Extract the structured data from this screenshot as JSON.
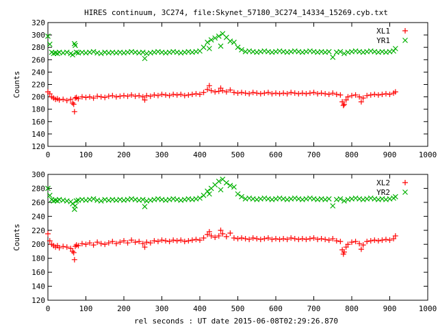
{
  "chart_data": {
    "type": "scatter",
    "title": "HIRES continuum, 3C274, file:Skynet_57180_3C274_14334_15269.cyb.txt",
    "xlabel": "rel seconds : UT date 2015-06-08T02:29:26.870",
    "colors": {
      "XL": "#ff0000",
      "YR": "#00b000"
    },
    "panels": [
      {
        "ylabel": "Counts",
        "xlim": [
          0,
          1000
        ],
        "ylim": [
          120,
          320
        ],
        "xticks": [
          "0",
          "100",
          "200",
          "300",
          "400",
          "500",
          "600",
          "700",
          "800",
          "900",
          "1000"
        ],
        "yticks": [
          "120",
          "140",
          "160",
          "180",
          "200",
          "220",
          "240",
          "260",
          "280",
          "300",
          "320"
        ],
        "series": [
          {
            "name": "XL1",
            "marker": "+",
            "x": [
              0,
              5,
              10,
              15,
              20,
              25,
              30,
              40,
              50,
              60,
              65,
              68,
              70,
              72,
              75,
              80,
              90,
              100,
              110,
              120,
              130,
              140,
              150,
              160,
              170,
              180,
              190,
              200,
              210,
              220,
              230,
              240,
              250,
              255,
              260,
              270,
              280,
              290,
              300,
              310,
              320,
              330,
              340,
              350,
              360,
              370,
              380,
              390,
              400,
              410,
              420,
              425,
              430,
              440,
              450,
              455,
              460,
              470,
              480,
              490,
              500,
              510,
              520,
              530,
              540,
              550,
              560,
              570,
              580,
              590,
              600,
              610,
              620,
              630,
              640,
              650,
              660,
              670,
              680,
              690,
              700,
              710,
              720,
              730,
              740,
              750,
              760,
              770,
              775,
              778,
              780,
              785,
              790,
              800,
              810,
              820,
              825,
              830,
              840,
              850,
              860,
              870,
              880,
              890,
              900,
              910,
              915
            ],
            "y": [
              208,
              205,
              200,
              198,
              196,
              197,
              195,
              196,
              194,
              196,
              190,
              188,
              176,
              198,
              199,
              197,
              200,
              199,
              200,
              198,
              201,
              200,
              199,
              201,
              202,
              200,
              201,
              202,
              201,
              203,
              201,
              202,
              200,
              195,
              202,
              201,
              203,
              202,
              204,
              203,
              202,
              204,
              203,
              204,
              202,
              203,
              204,
              205,
              204,
              207,
              212,
              218,
              210,
              208,
              209,
              214,
              210,
              208,
              211,
              207,
              206,
              207,
              206,
              205,
              207,
              206,
              205,
              206,
              207,
              205,
              206,
              205,
              206,
              205,
              207,
              206,
              205,
              206,
              205,
              206,
              207,
              205,
              206,
              205,
              204,
              206,
              204,
              203,
              192,
              186,
              188,
              195,
              200,
              202,
              203,
              200,
              192,
              198,
              202,
              203,
              204,
              203,
              204,
              205,
              204,
              206,
              208
            ]
          },
          {
            "name": "YR1",
            "marker": "x",
            "x": [
              0,
              5,
              10,
              15,
              20,
              25,
              30,
              40,
              50,
              60,
              65,
              70,
              72,
              75,
              80,
              90,
              100,
              110,
              120,
              130,
              140,
              150,
              160,
              170,
              180,
              190,
              200,
              210,
              220,
              230,
              240,
              250,
              255,
              260,
              270,
              280,
              290,
              300,
              310,
              320,
              330,
              340,
              350,
              360,
              370,
              380,
              390,
              400,
              410,
              420,
              425,
              430,
              440,
              450,
              455,
              460,
              470,
              480,
              490,
              500,
              510,
              520,
              530,
              540,
              550,
              560,
              570,
              580,
              590,
              600,
              610,
              620,
              630,
              640,
              650,
              660,
              670,
              680,
              690,
              700,
              710,
              720,
              730,
              740,
              750,
              760,
              770,
              780,
              790,
              800,
              810,
              820,
              830,
              840,
              850,
              860,
              870,
              880,
              890,
              900,
              910,
              915
            ],
            "y": [
              298,
              285,
              272,
              270,
              271,
              270,
              272,
              271,
              272,
              270,
              268,
              286,
              283,
              272,
              271,
              272,
              271,
              272,
              273,
              271,
              270,
              272,
              271,
              272,
              271,
              272,
              271,
              272,
              273,
              272,
              271,
              272,
              262,
              270,
              271,
              272,
              273,
              272,
              271,
              272,
              273,
              272,
              271,
              272,
              273,
              272,
              273,
              274,
              280,
              288,
              278,
              292,
              295,
              298,
              282,
              302,
              296,
              290,
              288,
              280,
              276,
              273,
              274,
              273,
              272,
              273,
              274,
              273,
              272,
              273,
              274,
              273,
              272,
              273,
              274,
              273,
              272,
              273,
              274,
              273,
              272,
              273,
              272,
              273,
              264,
              272,
              273,
              270,
              272,
              273,
              274,
              273,
              272,
              273,
              274,
              273,
              272,
              273,
              272,
              273,
              274,
              278
            ]
          }
        ]
      },
      {
        "ylabel": "Counts",
        "xlim": [
          0,
          1000
        ],
        "ylim": [
          120,
          300
        ],
        "xticks": [
          "0",
          "100",
          "200",
          "300",
          "400",
          "500",
          "600",
          "700",
          "800",
          "900",
          "1000"
        ],
        "yticks": [
          "120",
          "140",
          "160",
          "180",
          "200",
          "220",
          "240",
          "260",
          "280",
          "300"
        ],
        "series": [
          {
            "name": "XL2",
            "marker": "+",
            "x": [
              0,
              5,
              10,
              15,
              20,
              25,
              30,
              40,
              50,
              60,
              65,
              68,
              70,
              72,
              75,
              80,
              90,
              100,
              110,
              120,
              130,
              140,
              150,
              160,
              170,
              180,
              190,
              200,
              210,
              220,
              230,
              240,
              250,
              255,
              260,
              270,
              280,
              290,
              300,
              310,
              320,
              330,
              340,
              350,
              360,
              370,
              380,
              390,
              400,
              410,
              420,
              425,
              430,
              440,
              450,
              455,
              460,
              470,
              480,
              490,
              500,
              510,
              520,
              530,
              540,
              550,
              560,
              570,
              580,
              590,
              600,
              610,
              620,
              630,
              640,
              650,
              660,
              670,
              680,
              690,
              700,
              710,
              720,
              730,
              740,
              750,
              760,
              770,
              775,
              778,
              780,
              785,
              790,
              800,
              810,
              820,
              825,
              830,
              840,
              850,
              860,
              870,
              880,
              890,
              900,
              910,
              915
            ],
            "y": [
              215,
              205,
              200,
              198,
              196,
              198,
              195,
              197,
              196,
              194,
              190,
              188,
              178,
              197,
              199,
              198,
              201,
              200,
              202,
              199,
              203,
              201,
              200,
              202,
              204,
              201,
              203,
              205,
              202,
              206,
              203,
              204,
              201,
              196,
              203,
              202,
              205,
              204,
              206,
              205,
              204,
              206,
              205,
              206,
              204,
              205,
              206,
              207,
              206,
              209,
              214,
              218,
              212,
              210,
              212,
              220,
              215,
              211,
              216,
              209,
              208,
              209,
              208,
              207,
              209,
              208,
              207,
              208,
              209,
              207,
              208,
              207,
              208,
              207,
              209,
              208,
              207,
              208,
              207,
              208,
              209,
              207,
              208,
              207,
              206,
              208,
              205,
              204,
              192,
              186,
              189,
              196,
              200,
              203,
              204,
              201,
              193,
              199,
              204,
              205,
              206,
              205,
              206,
              207,
              206,
              208,
              212
            ]
          },
          {
            "name": "YR2",
            "marker": "x",
            "x": [
              0,
              5,
              10,
              15,
              20,
              25,
              30,
              40,
              50,
              60,
              65,
              70,
              72,
              75,
              80,
              90,
              100,
              110,
              120,
              130,
              140,
              150,
              160,
              170,
              180,
              190,
              200,
              210,
              220,
              230,
              240,
              250,
              255,
              260,
              270,
              280,
              290,
              300,
              310,
              320,
              330,
              340,
              350,
              360,
              370,
              380,
              390,
              400,
              410,
              420,
              425,
              430,
              440,
              450,
              455,
              460,
              470,
              480,
              490,
              500,
              510,
              520,
              530,
              540,
              550,
              560,
              570,
              580,
              590,
              600,
              610,
              620,
              630,
              640,
              650,
              660,
              670,
              680,
              690,
              700,
              710,
              720,
              730,
              740,
              750,
              760,
              770,
              780,
              790,
              800,
              810,
              820,
              830,
              840,
              850,
              860,
              870,
              880,
              890,
              900,
              910,
              915
            ],
            "y": [
              280,
              270,
              264,
              262,
              263,
              262,
              264,
              263,
              262,
              261,
              258,
              250,
              255,
              262,
              263,
              264,
              263,
              264,
              265,
              263,
              262,
              264,
              263,
              264,
              263,
              264,
              263,
              264,
              265,
              264,
              263,
              264,
              254,
              262,
              263,
              264,
              265,
              264,
              263,
              264,
              265,
              264,
              263,
              264,
              265,
              264,
              265,
              266,
              270,
              276,
              272,
              280,
              285,
              290,
              278,
              293,
              288,
              284,
              282,
              272,
              268,
              265,
              266,
              265,
              264,
              265,
              266,
              265,
              264,
              265,
              266,
              265,
              264,
              265,
              266,
              265,
              264,
              265,
              266,
              265,
              264,
              265,
              264,
              265,
              255,
              264,
              265,
              262,
              264,
              265,
              266,
              265,
              264,
              265,
              266,
              265,
              264,
              265,
              264,
              265,
              266,
              268
            ]
          }
        ]
      }
    ]
  }
}
